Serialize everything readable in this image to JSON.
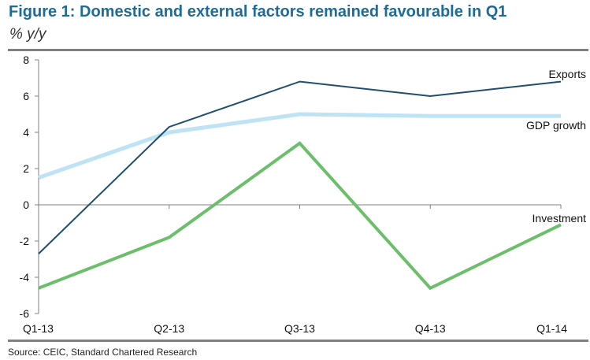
{
  "figure": {
    "title": "Figure 1: Domestic and external factors remained favourable in Q1",
    "subtitle": "% y/y",
    "source": "Source: CEIC, Standard Chartered Research"
  },
  "chart_data": {
    "type": "line",
    "title": "Figure 1: Domestic and external factors remained favourable in Q1",
    "ylabel": "% y/y",
    "xlabel": "",
    "categories": [
      "Q1-13",
      "Q2-13",
      "Q3-13",
      "Q4-13",
      "Q1-14"
    ],
    "ylim": [
      -6,
      8
    ],
    "yticks": [
      8,
      6,
      4,
      2,
      0,
      -2,
      -4,
      -6
    ],
    "grid": false,
    "legend": "inline-right",
    "series": [
      {
        "name": "Exports",
        "values": [
          -2.7,
          4.3,
          6.8,
          6.0,
          6.8
        ],
        "color": "#1f4e6e"
      },
      {
        "name": "GDP growth",
        "values": [
          1.5,
          4.0,
          5.0,
          4.9,
          4.9
        ],
        "color": "#bde3f5"
      },
      {
        "name": "Investment",
        "values": [
          -4.6,
          -1.8,
          3.4,
          -4.6,
          -1.1
        ],
        "color": "#6cbf6a"
      }
    ]
  }
}
